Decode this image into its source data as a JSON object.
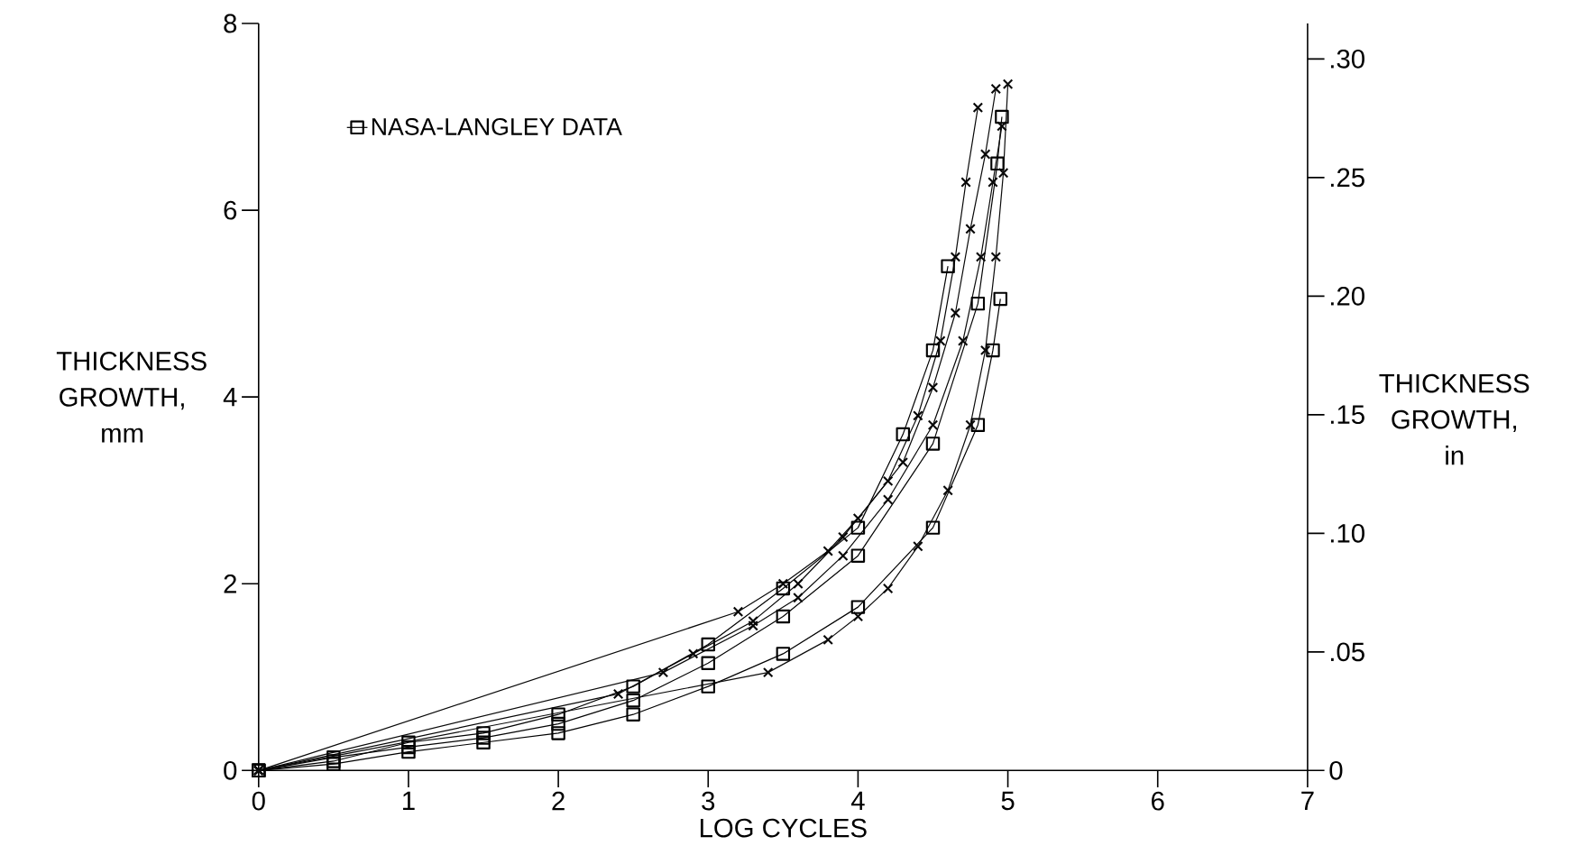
{
  "chart_data": {
    "type": "line",
    "xlabel": "LOG CYCLES",
    "ylabel": "THICKNESS GROWTH, mm",
    "y2label": "THICKNESS GROWTH, in",
    "legend": "top left",
    "xlim": [
      0,
      7
    ],
    "xticks": [
      0,
      1,
      2,
      3,
      4,
      5,
      6,
      7
    ],
    "ylim": [
      0,
      8
    ],
    "yticks": [
      0,
      2,
      4,
      6,
      8
    ],
    "y2lim": [
      0,
      0.31496
    ],
    "y2ticks": [
      0,
      {
        "value": 0.05,
        "label": ".05"
      },
      {
        "value": 0.1,
        "label": ".10"
      },
      {
        "value": 0.15,
        "label": ".15"
      },
      {
        "value": 0.2,
        "label": ".20"
      },
      {
        "value": 0.25,
        "label": ".25"
      },
      {
        "value": 0.3,
        "label": ".30"
      }
    ],
    "series": [
      {
        "name": "NASA-LANGLEY DATA",
        "color": "#000000",
        "marker": "square",
        "x": [
          0,
          0.5,
          1,
          1.5,
          2,
          2.5,
          3,
          3.5,
          4,
          4.5,
          4.8,
          4.9,
          4.95
        ],
        "values": [
          0,
          0.07,
          0.2,
          0.3,
          0.4,
          0.6,
          0.9,
          1.25,
          1.75,
          2.6,
          3.7,
          4.5,
          5.05
        ]
      },
      {
        "color": "#020202",
        "marker": "square",
        "x": [
          0,
          0.5,
          1,
          1.5,
          2,
          2.5,
          3,
          3.5,
          4,
          4.3,
          4.5,
          4.6
        ],
        "values": [
          0,
          0.1,
          0.3,
          0.4,
          0.6,
          0.9,
          1.35,
          1.95,
          2.6,
          3.6,
          4.5,
          5.4
        ]
      },
      {
        "color": "#040404",
        "marker": "square",
        "x": [
          0,
          0.5,
          1,
          1.5,
          2,
          2.5,
          3,
          3.5,
          4,
          4.5,
          4.8,
          4.93,
          4.96
        ],
        "values": [
          0,
          0.14,
          0.25,
          0.35,
          0.5,
          0.75,
          1.15,
          1.65,
          2.3,
          3.5,
          5.0,
          6.5,
          7.0
        ]
      },
      {
        "color": "#060606",
        "marker": "cross",
        "x": [
          0,
          2.4,
          2.9,
          3.3,
          3.6,
          3.9,
          4.2,
          4.4,
          4.55,
          4.65,
          4.72,
          4.8
        ],
        "values": [
          0,
          0.82,
          1.25,
          1.6,
          2.0,
          2.5,
          3.1,
          3.8,
          4.6,
          5.5,
          6.3,
          7.1
        ]
      },
      {
        "color": "#080808",
        "marker": "cross",
        "x": [
          0,
          3.2,
          3.5,
          3.8,
          4.0,
          4.3,
          4.5,
          4.65,
          4.75,
          4.85,
          4.92
        ],
        "values": [
          0,
          1.7,
          2.0,
          2.35,
          2.7,
          3.3,
          4.1,
          4.9,
          5.8,
          6.6,
          7.3
        ]
      },
      {
        "color": "#0a0a0a",
        "marker": "cross",
        "x": [
          0,
          2.7,
          3.3,
          3.6,
          3.9,
          4.2,
          4.5,
          4.7,
          4.82,
          4.9,
          4.96
        ],
        "values": [
          0,
          1.05,
          1.55,
          1.85,
          2.3,
          2.9,
          3.7,
          4.6,
          5.5,
          6.3,
          6.9
        ]
      },
      {
        "color": "#0c0c0c",
        "marker": "cross",
        "x": [
          0,
          3.4,
          3.8,
          4.0,
          4.2,
          4.4,
          4.6,
          4.75,
          4.85,
          4.92,
          4.97,
          5.0
        ],
        "values": [
          0,
          1.05,
          1.4,
          1.65,
          1.95,
          2.4,
          3.0,
          3.7,
          4.5,
          5.5,
          6.4,
          7.35
        ]
      }
    ]
  }
}
